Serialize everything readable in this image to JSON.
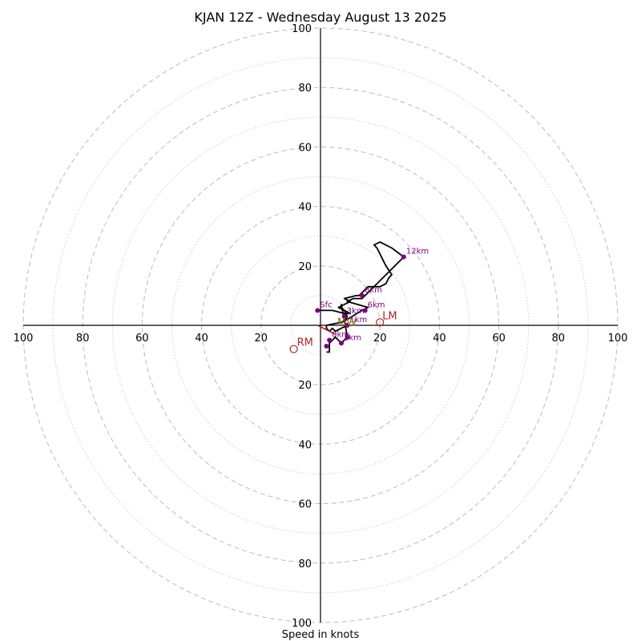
{
  "chart_data": {
    "type": "hodograph",
    "title": "KJAN 12Z - Wednesday August 13 2025",
    "xlabel": "Speed in knots",
    "range": [
      -100,
      100
    ],
    "ring_major": [
      20,
      40,
      60,
      80,
      100
    ],
    "ring_minor": [
      10,
      30,
      50,
      70,
      90
    ],
    "axis_ticks": [
      "100",
      "80",
      "60",
      "40",
      "20"
    ],
    "colors": {
      "hodograph_line": "#000000",
      "height_points": "#800080",
      "motion": "#b22222",
      "grid": "#bbbbbb"
    },
    "hodograph_uv": [
      [
        -1,
        5
      ],
      [
        0,
        5
      ],
      [
        4,
        5
      ],
      [
        8,
        4
      ],
      [
        10,
        4
      ],
      [
        6,
        6
      ],
      [
        10,
        8
      ],
      [
        8,
        9
      ],
      [
        12,
        10
      ],
      [
        13,
        10
      ],
      [
        16,
        13
      ],
      [
        20,
        13
      ],
      [
        22,
        14
      ],
      [
        23,
        16
      ],
      [
        24,
        17
      ],
      [
        22,
        20
      ],
      [
        19,
        26
      ],
      [
        18,
        27
      ],
      [
        20,
        28
      ],
      [
        24,
        26
      ],
      [
        28,
        23
      ],
      [
        14,
        9
      ],
      [
        11,
        9
      ],
      [
        9,
        8
      ],
      [
        16,
        6
      ],
      [
        14,
        5
      ],
      [
        9,
        2
      ],
      [
        7,
        1
      ],
      [
        2,
        0
      ],
      [
        2,
        -1
      ],
      [
        3,
        -2
      ],
      [
        4,
        -1
      ],
      [
        5,
        -2
      ],
      [
        7,
        -1
      ],
      [
        9,
        0
      ],
      [
        8,
        1
      ],
      [
        9,
        3
      ],
      [
        8,
        5
      ],
      [
        7,
        6
      ],
      [
        7,
        7
      ],
      [
        8,
        2
      ],
      [
        9,
        -4
      ],
      [
        7,
        -6
      ],
      [
        5,
        -4
      ],
      [
        3,
        -6
      ],
      [
        3,
        -9
      ],
      [
        2,
        -9
      ]
    ],
    "height_points": [
      {
        "label": "Sfc",
        "u": -1,
        "v": 5
      },
      {
        "label": "12km",
        "u": 28,
        "v": 23
      },
      {
        "label": "8km",
        "u": 14,
        "v": 10
      },
      {
        "label": "6km",
        "u": 15,
        "v": 5
      },
      {
        "label": "3km",
        "u": 8,
        "v": 3
      },
      {
        "label": "1km",
        "u": 9,
        "v": 0
      },
      {
        "label": "",
        "u": 9,
        "v": -4
      },
      {
        "label": "1km",
        "u": 7,
        "v": -6
      },
      {
        "label": "0km",
        "u": 3,
        "v": -5
      },
      {
        "label": "",
        "u": 2,
        "v": -7
      }
    ],
    "storm_motion": [
      {
        "label": "RM",
        "u": -9,
        "v": -8
      },
      {
        "label": "LM",
        "u": 20,
        "v": 1
      },
      {
        "label": "MW",
        "u": 7,
        "v": 1
      }
    ],
    "bunkers_vector": {
      "from": [
        -1,
        0
      ],
      "to": [
        5,
        -3
      ]
    }
  }
}
